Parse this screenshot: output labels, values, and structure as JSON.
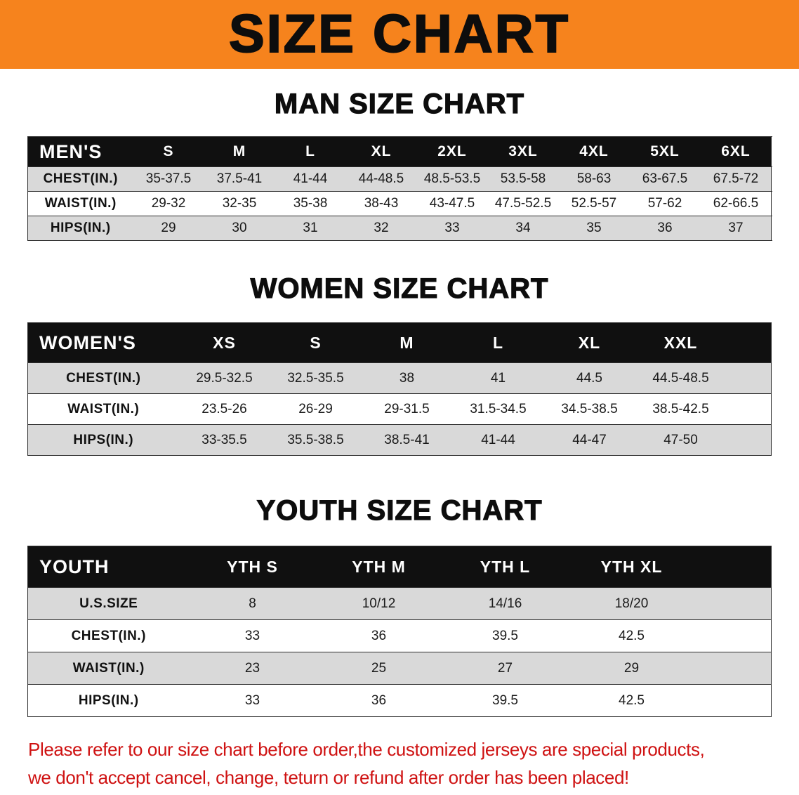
{
  "banner": {
    "title": "SIZE CHART"
  },
  "colors": {
    "banner_bg": "#f6831d",
    "table_header_bg": "#101010",
    "row_stripe": "#d9d9d9",
    "notice_red": "#cf1212"
  },
  "sections": [
    {
      "heading": "MAN SIZE CHART",
      "table": {
        "header": [
          "MEN'S",
          "S",
          "M",
          "L",
          "XL",
          "2XL",
          "3XL",
          "4XL",
          "5XL",
          "6XL"
        ],
        "rows": [
          {
            "label": "CHEST(IN.)",
            "values": [
              "35-37.5",
              "37.5-41",
              "41-44",
              "44-48.5",
              "48.5-53.5",
              "53.5-58",
              "58-63",
              "63-67.5",
              "67.5-72"
            ]
          },
          {
            "label": "WAIST(IN.)",
            "values": [
              "29-32",
              "32-35",
              "35-38",
              "38-43",
              "43-47.5",
              "47.5-52.5",
              "52.5-57",
              "57-62",
              "62-66.5"
            ]
          },
          {
            "label": "HIPS(IN.)",
            "values": [
              "29",
              "30",
              "31",
              "32",
              "33",
              "34",
              "35",
              "36",
              "37"
            ]
          }
        ]
      }
    },
    {
      "heading": "WOMEN SIZE CHART",
      "table": {
        "header": [
          "WOMEN'S",
          "XS",
          "S",
          "M",
          "L",
          "XL",
          "XXL"
        ],
        "rows": [
          {
            "label": "CHEST(IN.)",
            "values": [
              "29.5-32.5",
              "32.5-35.5",
              "38",
              "41",
              "44.5",
              "44.5-48.5"
            ]
          },
          {
            "label": "WAIST(IN.)",
            "values": [
              "23.5-26",
              "26-29",
              "29-31.5",
              "31.5-34.5",
              "34.5-38.5",
              "38.5-42.5"
            ]
          },
          {
            "label": "HIPS(IN.)",
            "values": [
              "33-35.5",
              "35.5-38.5",
              "38.5-41",
              "41-44",
              "44-47",
              "47-50"
            ]
          }
        ]
      }
    },
    {
      "heading": "YOUTH SIZE CHART",
      "table": {
        "header": [
          "YOUTH",
          "YTH S",
          "YTH M",
          "YTH L",
          "YTH XL"
        ],
        "rows": [
          {
            "label": "U.S.SIZE",
            "values": [
              "8",
              "10/12",
              "14/16",
              "18/20"
            ]
          },
          {
            "label": "CHEST(IN.)",
            "values": [
              "33",
              "36",
              "39.5",
              "42.5"
            ]
          },
          {
            "label": "WAIST(IN.)",
            "values": [
              "23",
              "25",
              "27",
              "29"
            ]
          },
          {
            "label": "HIPS(IN.)",
            "values": [
              "33",
              "36",
              "39.5",
              "42.5"
            ]
          }
        ]
      }
    }
  ],
  "footer": {
    "line1": "Please refer to our size chart before order,the customized jerseys are special products,",
    "line2": "we don't accept cancel, change, teturn or refund after order has been placed!"
  }
}
